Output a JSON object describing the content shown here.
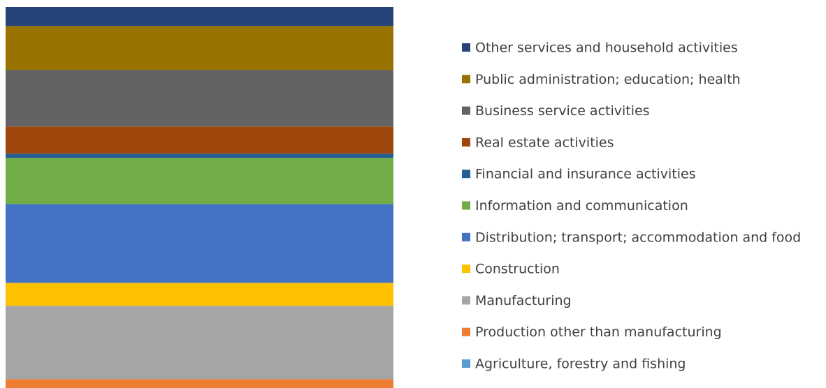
{
  "chart_data": {
    "type": "stacked_bar",
    "categories": [
      null
    ],
    "series": [
      {
        "name": "Agriculture, forestry and fishing",
        "color": "#5b9bd5",
        "values": [
          0.5
        ]
      },
      {
        "name": "Production other than manufacturing",
        "color": "#ed7d31",
        "values": [
          3.6
        ]
      },
      {
        "name": "Manufacturing",
        "color": "#a5a5a5",
        "values": [
          18.9
        ]
      },
      {
        "name": "Construction",
        "color": "#ffc000",
        "values": [
          5.9
        ]
      },
      {
        "name": "Distribution; transport; accommodation and food",
        "color": "#4472c4",
        "values": [
          20.3
        ]
      },
      {
        "name": "Information and communication",
        "color": "#70ad47",
        "values": [
          11.9
        ]
      },
      {
        "name": "Financial and insurance activities",
        "color": "#255e91",
        "values": [
          1.1
        ]
      },
      {
        "name": "Real estate activities",
        "color": "#9e480e",
        "values": [
          7.0
        ]
      },
      {
        "name": "Business service activities",
        "color": "#636363",
        "values": [
          14.6
        ]
      },
      {
        "name": "Public administration; education; health",
        "color": "#997300",
        "values": [
          11.3
        ]
      },
      {
        "name": "Other services and household activities",
        "color": "#264478",
        "values": [
          4.9
        ]
      }
    ],
    "ylim": [
      0,
      100
    ],
    "legend": "right"
  }
}
